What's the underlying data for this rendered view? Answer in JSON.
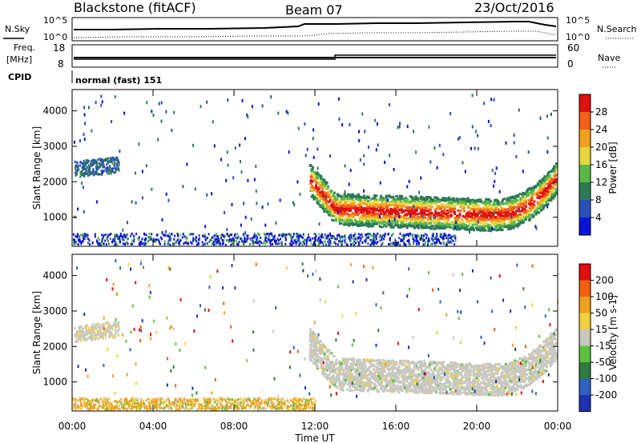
{
  "header": {
    "station": "Blackstone (fitACF)",
    "beam": "Beam 07",
    "date": "23/Oct/2016"
  },
  "top_panels": {
    "nsky_label": "N.Sky",
    "nsearch_label": "N.Search",
    "noise_ticks": [
      "10^5",
      "10^0"
    ],
    "freq_label_1": "Freq.",
    "freq_label_2": "[MHz]",
    "freq_ticks": [
      "18",
      "8"
    ],
    "nave_label": "Nave",
    "nave_ticks": [
      "60",
      "0"
    ],
    "cpid_label": "CPID",
    "cpid_value": "normal (fast) 151"
  },
  "x_axis": {
    "label": "Time UT",
    "ticks": [
      "00:00",
      "04:00",
      "08:00",
      "12:00",
      "16:00",
      "20:00",
      "00:00"
    ]
  },
  "chart_data": [
    {
      "type": "heatmap",
      "name": "power",
      "xlabel": "Time UT",
      "ylabel": "Slant Range [km]",
      "xlim": [
        0,
        24
      ],
      "ylim": [
        180,
        4600
      ],
      "yticks": [
        "1000",
        "2000",
        "3000",
        "4000"
      ],
      "colorbar_label": "Power [dB]",
      "colorbar_ticks": [
        "4",
        "8",
        "12",
        "16",
        "20",
        "24",
        "28"
      ],
      "colorbar_colors": [
        "#0a14d8",
        "#2a50b8",
        "#2e7a55",
        "#58b84a",
        "#e6d640",
        "#f2a020",
        "#f06018",
        "#e01010"
      ]
    },
    {
      "type": "heatmap",
      "name": "velocity",
      "xlabel": "Time UT",
      "ylabel": "Slant Range [km]",
      "xlim": [
        0,
        24
      ],
      "ylim": [
        180,
        4600
      ],
      "yticks": [
        "1000",
        "2000",
        "3000",
        "4000"
      ],
      "colorbar_label": "Velocity [m s-1]",
      "colorbar_ticks": [
        "200",
        "100",
        "50",
        "15",
        "-15",
        "-50",
        "-100",
        "-200"
      ],
      "colorbar_colors": [
        "#2030b0",
        "#3060c0",
        "#2f7a40",
        "#5fc040",
        "#c8c8c0",
        "#f0d040",
        "#f0a020",
        "#f06010",
        "#e01010"
      ]
    }
  ],
  "colors": {
    "ground_scatter": "#c8c8c0",
    "axis": "#000000"
  }
}
